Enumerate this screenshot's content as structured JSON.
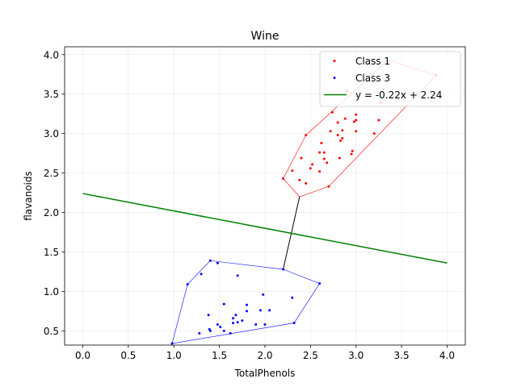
{
  "chart_data": {
    "type": "scatter",
    "title": "Wine",
    "xlabel": "TotalPhenols",
    "ylabel": "flavanoids",
    "xlim": [
      -0.2,
      4.2
    ],
    "ylim": [
      0.32,
      4.1
    ],
    "xticks": [
      0.0,
      0.5,
      1.0,
      1.5,
      2.0,
      2.5,
      3.0,
      3.5,
      4.0
    ],
    "yticks": [
      0.5,
      1.0,
      1.5,
      2.0,
      2.5,
      3.0,
      3.5,
      4.0
    ],
    "grid": true,
    "legend_position": "top-right",
    "series": [
      {
        "name": "Class 1",
        "color": "#ff0000",
        "points": [
          [
            2.2,
            2.43
          ],
          [
            2.3,
            2.53
          ],
          [
            2.38,
            2.41
          ],
          [
            2.4,
            2.69
          ],
          [
            2.45,
            2.98
          ],
          [
            2.45,
            2.37
          ],
          [
            2.5,
            2.56
          ],
          [
            2.52,
            2.61
          ],
          [
            2.6,
            2.52
          ],
          [
            2.6,
            2.76
          ],
          [
            2.62,
            2.88
          ],
          [
            2.65,
            2.76
          ],
          [
            2.65,
            2.68
          ],
          [
            2.68,
            2.63
          ],
          [
            2.7,
            2.33
          ],
          [
            2.72,
            3.03
          ],
          [
            2.74,
            3.27
          ],
          [
            2.8,
            2.98
          ],
          [
            2.8,
            3.14
          ],
          [
            2.82,
            2.69
          ],
          [
            2.83,
            2.91
          ],
          [
            2.85,
            3.04
          ],
          [
            2.85,
            2.94
          ],
          [
            2.88,
            3.19
          ],
          [
            2.9,
            3.54
          ],
          [
            2.95,
            2.74
          ],
          [
            2.96,
            2.78
          ],
          [
            2.98,
            3.15
          ],
          [
            3.0,
            3.17
          ],
          [
            3.0,
            3.24
          ],
          [
            3.0,
            3.03
          ],
          [
            3.2,
            3.0
          ],
          [
            3.25,
            3.17
          ],
          [
            3.27,
            3.39
          ],
          [
            3.3,
            3.56
          ],
          [
            3.88,
            3.74
          ]
        ],
        "hull": [
          [
            2.2,
            2.43
          ],
          [
            2.38,
            2.2
          ],
          [
            2.7,
            2.33
          ],
          [
            3.88,
            3.74
          ],
          [
            3.35,
            3.93
          ],
          [
            2.45,
            2.98
          ]
        ]
      },
      {
        "name": "Class 3",
        "color": "#0000ff",
        "points": [
          [
            0.98,
            0.34
          ],
          [
            1.15,
            1.09
          ],
          [
            1.28,
            0.47
          ],
          [
            1.3,
            1.22
          ],
          [
            1.38,
            0.7
          ],
          [
            1.39,
            0.52
          ],
          [
            1.4,
            0.5
          ],
          [
            1.4,
            1.39
          ],
          [
            1.48,
            0.58
          ],
          [
            1.48,
            1.36
          ],
          [
            1.51,
            0.55
          ],
          [
            1.55,
            0.5
          ],
          [
            1.55,
            0.84
          ],
          [
            1.62,
            0.47
          ],
          [
            1.65,
            0.66
          ],
          [
            1.65,
            0.6
          ],
          [
            1.68,
            0.7
          ],
          [
            1.7,
            0.61
          ],
          [
            1.7,
            1.2
          ],
          [
            1.75,
            0.63
          ],
          [
            1.8,
            0.75
          ],
          [
            1.8,
            0.83
          ],
          [
            1.9,
            0.58
          ],
          [
            1.95,
            0.76
          ],
          [
            1.98,
            0.96
          ],
          [
            2.0,
            0.58
          ],
          [
            2.05,
            0.76
          ],
          [
            2.2,
            1.28
          ],
          [
            2.3,
            0.92
          ],
          [
            2.32,
            0.6
          ],
          [
            2.6,
            1.1
          ]
        ],
        "hull": [
          [
            0.98,
            0.34
          ],
          [
            2.32,
            0.6
          ],
          [
            2.6,
            1.1
          ],
          [
            2.2,
            1.28
          ],
          [
            1.4,
            1.39
          ],
          [
            1.15,
            1.09
          ]
        ]
      }
    ],
    "lines": [
      {
        "name": "y = -0.22x + 2.24",
        "color": "#008000",
        "slope": -0.22,
        "intercept": 2.24,
        "x_range": [
          0.0,
          4.0
        ]
      }
    ],
    "connector": {
      "from": [
        2.2,
        1.28
      ],
      "to": [
        2.38,
        2.2
      ],
      "color": "#000000"
    }
  }
}
